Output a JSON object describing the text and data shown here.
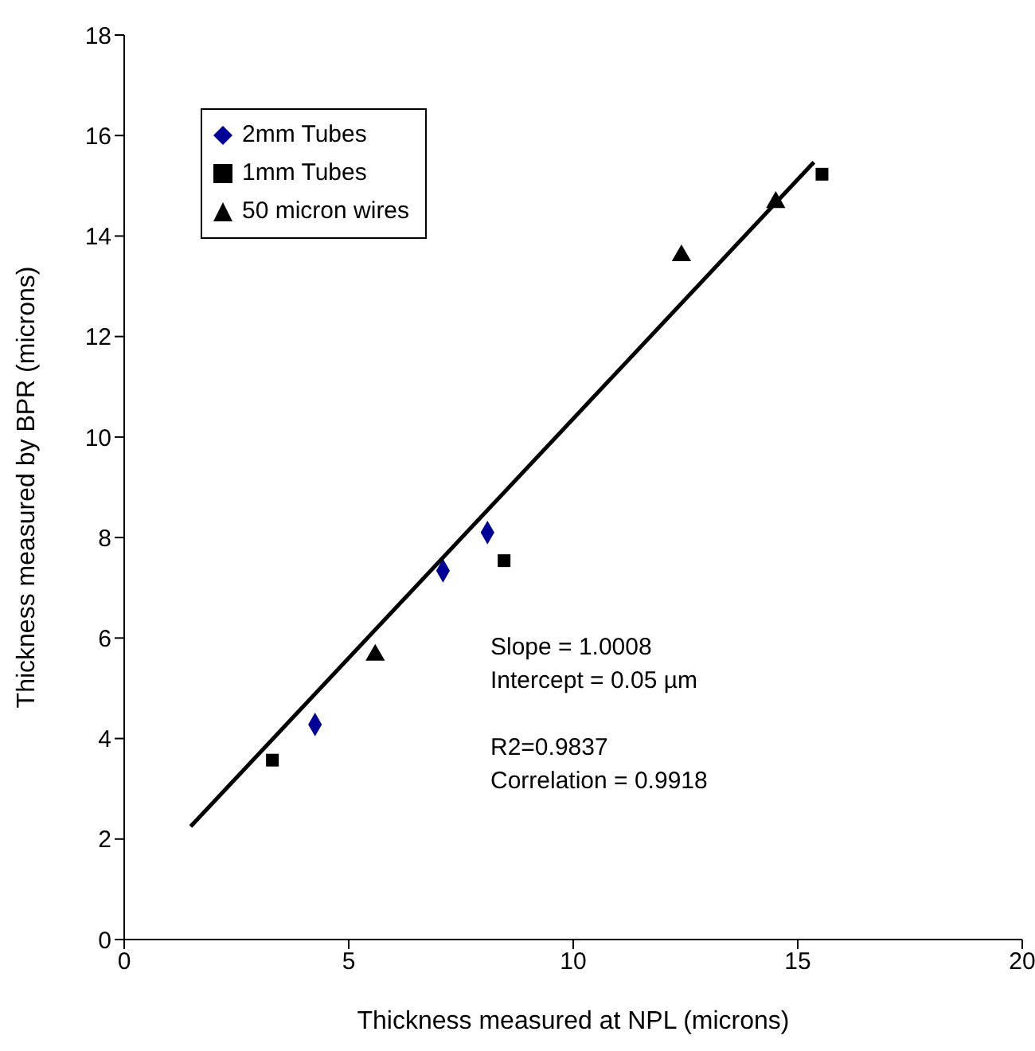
{
  "chart_data": {
    "type": "scatter",
    "xlabel": "Thickness measured at NPL (microns)",
    "ylabel": "Thickness measured by BPR (microns)",
    "xlim": [
      0,
      20
    ],
    "xticks": [
      0,
      5,
      10,
      15,
      20
    ],
    "ylim": [
      0,
      18
    ],
    "yticks": [
      0,
      2,
      4,
      6,
      8,
      10,
      12,
      14,
      16,
      18
    ],
    "grid": false,
    "legend": "top left",
    "series": [
      {
        "name": "2mm Tubes",
        "color": "#000099",
        "marker": "diamond",
        "x": [
          4.25,
          7.1,
          8.09
        ],
        "values": [
          4.28,
          7.34,
          8.1
        ]
      },
      {
        "name": "1mm Tubes",
        "color": "#000000",
        "marker": "square",
        "x": [
          3.3,
          8.46,
          15.54
        ],
        "values": [
          3.57,
          7.54,
          15.23
        ]
      },
      {
        "name": "50 micron wires",
        "color": "#000000",
        "marker": "triangle",
        "x": [
          5.59,
          12.41,
          14.51
        ],
        "values": [
          5.66,
          13.61,
          14.67
        ]
      },
      {
        "type": "line",
        "color": "#000000",
        "marker": "none",
        "x": [
          1.48,
          15.36
        ],
        "values": [
          2.25,
          15.47
        ]
      }
    ],
    "annotations": [
      "Slope = 1.0008",
      "Intercept = 0.05 µm",
      "R2=0.9837",
      "Correlation = 0.9918"
    ]
  }
}
